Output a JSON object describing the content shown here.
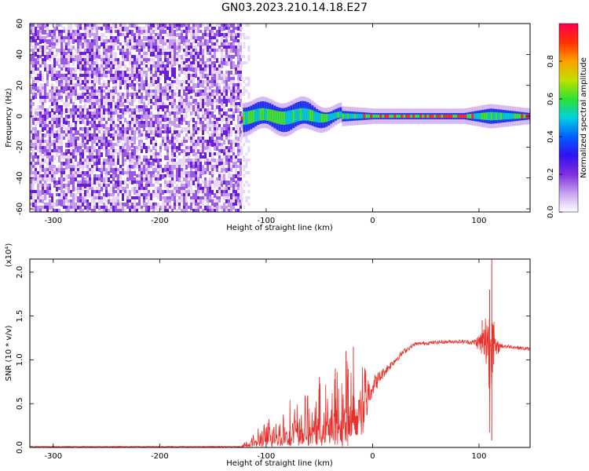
{
  "title": "GN03.2023.210.14.18.E27",
  "colors": {
    "snr_line": "#e8302a",
    "spectrogram_noise": [
      "#e8d8f8",
      "#c49af0",
      "#9a5ae6",
      "#6a1ed8"
    ],
    "spectrogram_signal": [
      "#2030f0",
      "#00c8d0",
      "#40e030",
      "#f03030"
    ]
  },
  "chart_data": [
    {
      "type": "heatmap",
      "title": "",
      "xlabel": "Height of straight line (km)",
      "ylabel": "Frequency (Hz)",
      "xlim": [
        -322,
        148
      ],
      "ylim": [
        -62,
        60
      ],
      "x_ticks": [
        -300,
        -200,
        -100,
        0,
        100
      ],
      "x_tick_labels": [
        "-300",
        "-200",
        "-100",
        "0",
        "100"
      ],
      "y_ticks": [
        60,
        40,
        20,
        0,
        -20,
        -40,
        -60
      ],
      "y_tick_labels": [
        "60",
        "40",
        "20",
        "0",
        "-20",
        "-40",
        "-60"
      ],
      "noise_region_x": [
        -322,
        -124
      ],
      "signal_band": [
        {
          "x": -124,
          "half_width_hz": 8,
          "amplitude": 0.35
        },
        {
          "x": -100,
          "half_width_hz": 7,
          "amplitude": 0.45
        },
        {
          "x": -80,
          "half_width_hz": 8,
          "amplitude": 0.5
        },
        {
          "x": -60,
          "half_width_hz": 7,
          "amplitude": 0.5
        },
        {
          "x": -40,
          "half_width_hz": 4,
          "amplitude": 0.6
        },
        {
          "x": -20,
          "half_width_hz": 3,
          "amplitude": 0.75
        },
        {
          "x": 0,
          "half_width_hz": 2,
          "amplitude": 0.85
        },
        {
          "x": 40,
          "half_width_hz": 2,
          "amplitude": 0.85
        },
        {
          "x": 85,
          "half_width_hz": 2,
          "amplitude": 0.9
        },
        {
          "x": 110,
          "half_width_hz": 5,
          "amplitude": 0.6
        },
        {
          "x": 148,
          "half_width_hz": 2,
          "amplitude": 0.9
        }
      ],
      "colorbar": {
        "label": "Normalized spectral amplitude",
        "range": [
          0,
          1
        ],
        "ticks": [
          0.0,
          0.2,
          0.4,
          0.6,
          0.8
        ],
        "tick_labels": [
          "0.0",
          "0.2",
          "0.4",
          "0.6",
          "0.8"
        ],
        "colors": [
          "#ffffff",
          "#c8a0f0",
          "#8030e0",
          "#3010f0",
          "#0060ff",
          "#00d0e0",
          "#30e030",
          "#c0e000",
          "#ffa000",
          "#ff3000",
          "#ff0050"
        ]
      }
    },
    {
      "type": "line",
      "title": "",
      "xlabel": "Height of straight line (km)",
      "ylabel": "SNR (10 * v/v)",
      "y_scale_label": "(x10⁴)",
      "xlim": [
        -322,
        148
      ],
      "ylim": [
        0,
        2.15
      ],
      "x_ticks": [
        -300,
        -200,
        -100,
        0,
        100
      ],
      "x_tick_labels": [
        "-300",
        "-200",
        "-100",
        "0",
        "100"
      ],
      "y_ticks": [
        0.0,
        0.5,
        1.0,
        1.5,
        2.0
      ],
      "y_tick_labels": [
        "0.0",
        "0.5",
        "1.0",
        "1.5",
        "2.0"
      ],
      "series": [
        {
          "x": [
            -322,
            -300,
            -250,
            -200,
            -150,
            -124,
            -115,
            -100,
            -80,
            -60,
            -40,
            -20,
            -10,
            0,
            10,
            20,
            30,
            40,
            60,
            80,
            95,
            100,
            105,
            108,
            110,
            112,
            115,
            120,
            130,
            148
          ],
          "y": [
            0.01,
            0.01,
            0.01,
            0.01,
            0.01,
            0.01,
            0.05,
            0.12,
            0.2,
            0.25,
            0.3,
            0.42,
            0.55,
            0.7,
            0.85,
            0.98,
            1.1,
            1.18,
            1.2,
            1.21,
            1.2,
            1.2,
            1.18,
            1.3,
            0.9,
            1.5,
            1.1,
            1.16,
            1.15,
            1.12
          ],
          "noise_amplitude": [
            0.004,
            0.004,
            0.004,
            0.004,
            0.004,
            0.006,
            0.06,
            0.12,
            0.18,
            0.22,
            0.28,
            0.38,
            0.3,
            0.12,
            0.06,
            0.04,
            0.03,
            0.02,
            0.02,
            0.02,
            0.03,
            0.1,
            0.25,
            0.5,
            0.8,
            0.7,
            0.15,
            0.03,
            0.02,
            0.02
          ],
          "spikes": [
            {
              "x": -50,
              "y": 0.8
            },
            {
              "x": -35,
              "y": 0.9
            },
            {
              "x": -25,
              "y": 1.1
            },
            {
              "x": -18,
              "y": 1.15
            },
            {
              "x": 103,
              "y": 1.45
            },
            {
              "x": 110,
              "y": 1.8
            },
            {
              "x": 112,
              "y": 2.15
            },
            {
              "x": 112,
              "y": 0.08
            }
          ]
        }
      ]
    }
  ]
}
